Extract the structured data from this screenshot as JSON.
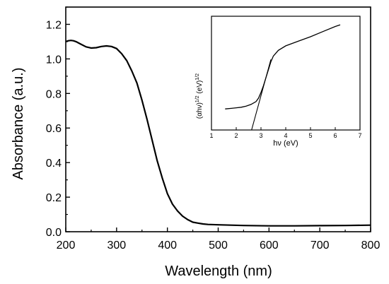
{
  "chart_data": [
    {
      "type": "line",
      "xlabel": "Wavelength (nm)",
      "ylabel": "Absorbance (a.u.)",
      "xlim": [
        200,
        800
      ],
      "ylim": [
        0.0,
        1.3
      ],
      "xticks": [
        200,
        300,
        400,
        500,
        600,
        700,
        800
      ],
      "yticks": [
        0.0,
        0.2,
        0.4,
        0.6,
        0.8,
        1.0,
        1.2
      ],
      "xtick_labels": [
        "200",
        "300",
        "400",
        "500",
        "600",
        "700",
        "800"
      ],
      "ytick_labels": [
        "0.0",
        "0.2",
        "0.4",
        "0.6",
        "0.8",
        "1.0",
        "1.2"
      ],
      "grid": false,
      "legend": "none",
      "line_color": "#000000",
      "series": [
        {
          "x": [
            200,
            205,
            210,
            215,
            220,
            230,
            240,
            250,
            260,
            270,
            280,
            290,
            300,
            310,
            320,
            330,
            340,
            350,
            360,
            370,
            380,
            390,
            400,
            410,
            420,
            430,
            440,
            450,
            460,
            470,
            480,
            500,
            550,
            600,
            650,
            700,
            750,
            800
          ],
          "y": [
            1.1,
            1.105,
            1.107,
            1.105,
            1.1,
            1.085,
            1.07,
            1.063,
            1.065,
            1.072,
            1.075,
            1.072,
            1.06,
            1.03,
            0.99,
            0.93,
            0.86,
            0.76,
            0.65,
            0.53,
            0.41,
            0.31,
            0.22,
            0.16,
            0.12,
            0.09,
            0.07,
            0.055,
            0.05,
            0.045,
            0.042,
            0.04,
            0.036,
            0.034,
            0.034,
            0.035,
            0.036,
            0.038
          ]
        }
      ]
    },
    {
      "type": "line",
      "xlabel": "hν (eV)",
      "ylabel": "(αhν)",
      "ylabel_exp": "1/2",
      "ylabel_unit": " (eV)",
      "ylabel_unit_exp": "1/2",
      "xlim": [
        1,
        7
      ],
      "ylim": [
        0,
        1
      ],
      "xticks": [
        1,
        2,
        3,
        4,
        5,
        6,
        7
      ],
      "xtick_labels": [
        "1",
        "2",
        "3",
        "4",
        "5",
        "6",
        "7"
      ],
      "grid": false,
      "legend": "none",
      "series": [
        {
          "x": [
            1.55,
            1.8,
            2.0,
            2.2,
            2.4,
            2.6,
            2.8,
            2.9,
            3.0,
            3.1,
            3.2,
            3.3,
            3.4,
            3.5,
            3.7,
            4.0,
            4.5,
            5.0,
            5.5,
            6.0,
            6.2
          ],
          "y": [
            0.185,
            0.19,
            0.195,
            0.2,
            0.21,
            0.225,
            0.25,
            0.28,
            0.33,
            0.39,
            0.46,
            0.53,
            0.6,
            0.65,
            0.7,
            0.74,
            0.78,
            0.82,
            0.865,
            0.91,
            0.925
          ]
        },
        {
          "x": [
            2.62,
            3.4
          ],
          "y": [
            0.0,
            0.62
          ]
        }
      ]
    }
  ]
}
